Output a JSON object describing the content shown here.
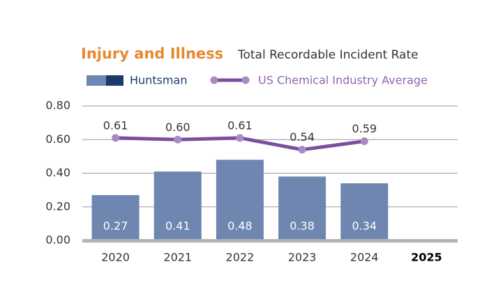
{
  "chart_data": {
    "type": "bar",
    "title": "Injury and Illness",
    "subtitle": "Total Recordable Incident Rate",
    "categories": [
      "2020",
      "2021",
      "2022",
      "2023",
      "2024",
      "2025"
    ],
    "series": [
      {
        "name": "Huntsman",
        "type": "bar",
        "color": "#6e86b0",
        "values": [
          0.27,
          0.41,
          0.48,
          0.38,
          0.34,
          null
        ]
      },
      {
        "name": "US Chemical Industry Average",
        "type": "line",
        "color": "#7b4f9e",
        "values": [
          0.61,
          0.6,
          0.61,
          0.54,
          0.59,
          null
        ],
        "value_labels": [
          "0.61",
          "0.60",
          "0.61",
          "0.54",
          "0.59",
          null
        ]
      }
    ],
    "ylim": [
      0,
      0.8
    ],
    "yticks": [
      {
        "value": 0,
        "label": "0.00"
      },
      {
        "value": 0.2,
        "label": "0.20"
      },
      {
        "value": 0.4,
        "label": "0.40"
      },
      {
        "value": 0.6,
        "label": "0.60"
      },
      {
        "value": 0.8,
        "label": "0.80"
      }
    ],
    "grid": true
  }
}
